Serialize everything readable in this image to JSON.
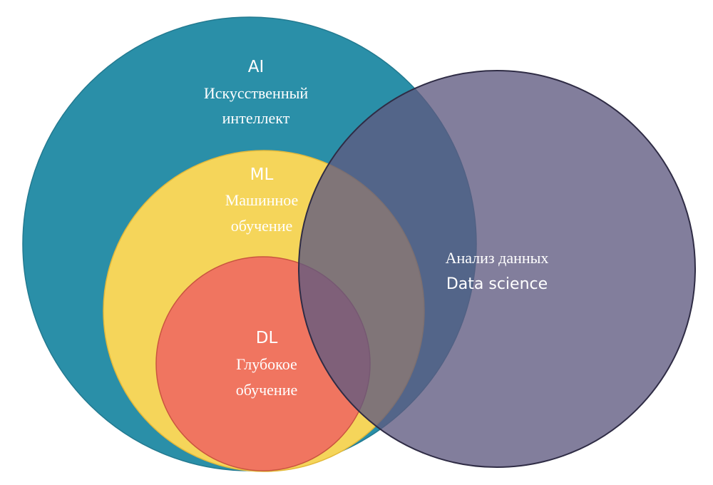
{
  "diagram": {
    "ai": {
      "abbr": "AI",
      "label_line1": "Искусственный",
      "label_line2": "интеллект",
      "color": "#2a8fa8"
    },
    "ml": {
      "abbr": "ML",
      "label_line1": "Машинное",
      "label_line2": "обучение",
      "color": "#f5d55a"
    },
    "dl": {
      "abbr": "DL",
      "label_line1": "Глубокое",
      "label_line2": "обучение",
      "color": "#f07560"
    },
    "ds": {
      "label_ru": "Анализ данных",
      "label_en": "Data science",
      "color": "#6c6888"
    }
  }
}
